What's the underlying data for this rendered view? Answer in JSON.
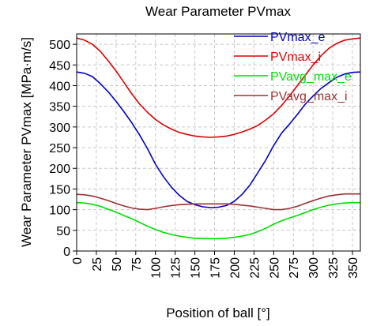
{
  "chart_data": {
    "type": "line",
    "title": "Wear Parameter PVmax",
    "xlabel": "Position of ball [°]",
    "ylabel": "Wear Parameter PVmax [MPa·m/s]",
    "xlim": [
      0,
      360
    ],
    "ylim": [
      0,
      525
    ],
    "x_ticks": [
      0,
      25,
      50,
      75,
      100,
      125,
      150,
      175,
      200,
      225,
      250,
      275,
      300,
      325,
      350
    ],
    "y_ticks": [
      0,
      50,
      100,
      150,
      200,
      250,
      300,
      350,
      400,
      450,
      500
    ],
    "grid": true,
    "legend_position": "top-right",
    "x": [
      0,
      10,
      20,
      30,
      40,
      50,
      60,
      70,
      80,
      90,
      100,
      110,
      120,
      130,
      140,
      150,
      160,
      170,
      180,
      190,
      200,
      210,
      220,
      230,
      240,
      250,
      260,
      270,
      280,
      290,
      300,
      310,
      320,
      330,
      340,
      350,
      360
    ],
    "series": [
      {
        "name": "PVmax_e",
        "color": "#0000cc",
        "values": [
          433,
          430,
          422,
          405,
          385,
          362,
          337,
          310,
          280,
          247,
          210,
          180,
          155,
          135,
          120,
          112,
          107,
          105,
          106,
          110,
          120,
          137,
          160,
          190,
          220,
          255,
          285,
          307,
          330,
          355,
          375,
          393,
          407,
          420,
          428,
          432,
          433
        ]
      },
      {
        "name": "PVmax_i",
        "color": "#dd0000",
        "values": [
          515,
          510,
          500,
          483,
          460,
          435,
          408,
          380,
          355,
          335,
          318,
          305,
          295,
          287,
          282,
          278,
          276,
          275,
          276,
          278,
          282,
          288,
          295,
          304,
          317,
          332,
          352,
          375,
          400,
          425,
          450,
          472,
          490,
          502,
          510,
          513,
          515
        ]
      },
      {
        "name": "PVavg_max_e",
        "color": "#00dd00",
        "values": [
          117,
          116,
          113,
          108,
          101,
          94,
          86,
          78,
          69,
          60,
          52,
          45,
          40,
          36,
          33,
          31,
          30,
          30,
          30,
          31,
          33,
          36,
          40,
          47,
          55,
          65,
          73,
          80,
          86,
          93,
          100,
          106,
          111,
          114,
          116,
          117,
          117
        ]
      },
      {
        "name": "PVavg_max_i",
        "color": "#993333",
        "values": [
          137,
          136,
          133,
          128,
          122,
          115,
          109,
          104,
          101,
          100,
          103,
          107,
          110,
          112,
          113,
          114,
          114,
          114,
          114,
          114,
          113,
          111,
          109,
          106,
          103,
          100,
          100,
          103,
          108,
          115,
          122,
          128,
          133,
          136,
          138,
          138,
          138
        ]
      }
    ]
  }
}
